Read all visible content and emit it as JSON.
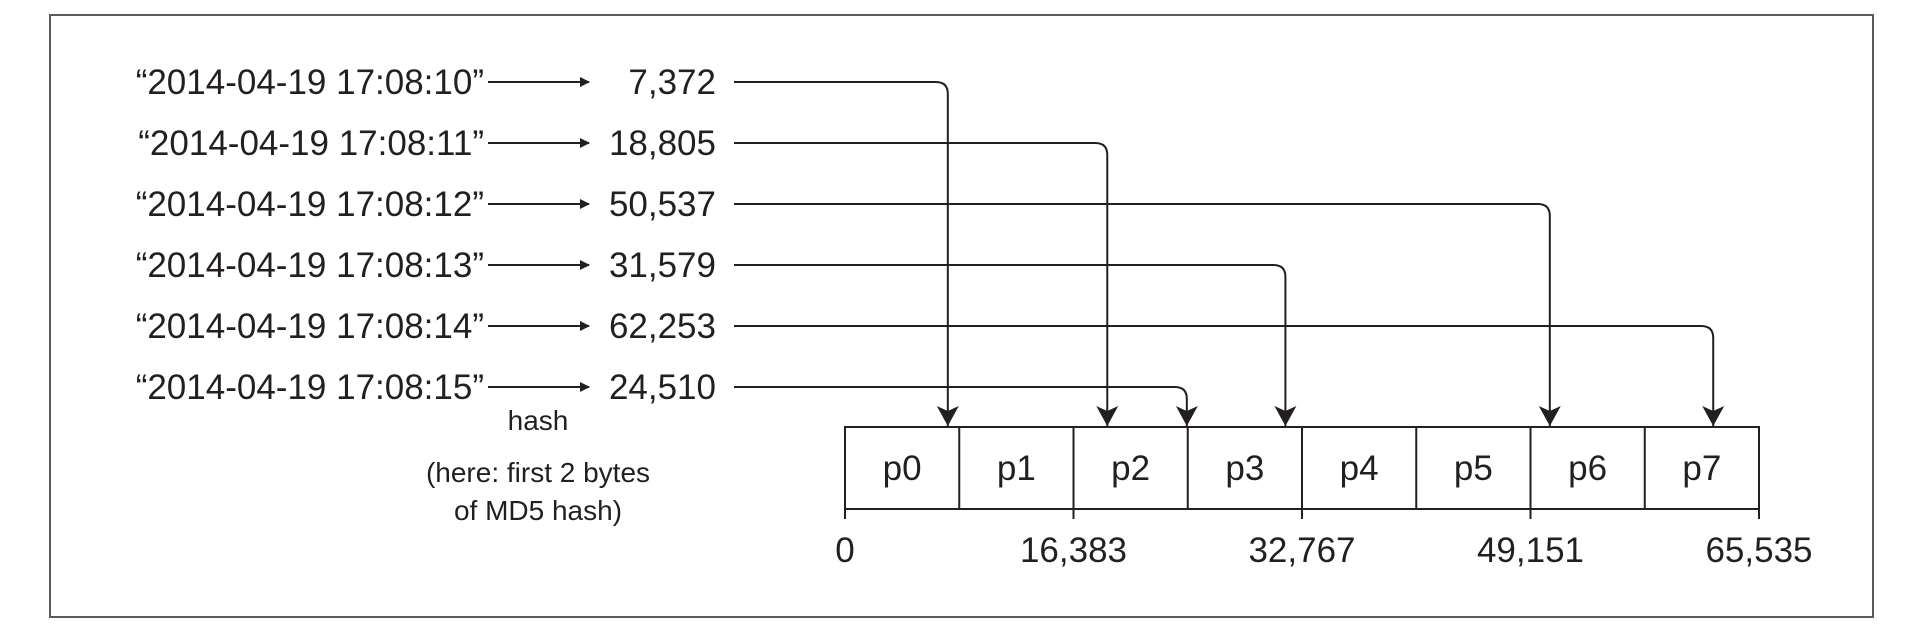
{
  "keys": [
    "“2014-04-19 17:08:10”",
    "“2014-04-19 17:08:11”",
    "“2014-04-19 17:08:12”",
    "“2014-04-19 17:08:13”",
    "“2014-04-19 17:08:14”",
    "“2014-04-19 17:08:15”"
  ],
  "hashes": [
    "7,372",
    "18,805",
    "50,537",
    "31,579",
    "62,253",
    "24,510"
  ],
  "hash_values": [
    7372,
    18805,
    50537,
    31579,
    62253,
    24510
  ],
  "partitions": [
    "p0",
    "p1",
    "p2",
    "p3",
    "p4",
    "p5",
    "p6",
    "p7"
  ],
  "scale_ticks": [
    "0",
    "16,383",
    "32,767",
    "49,151",
    "65,535"
  ],
  "caption": {
    "line1": "hash",
    "line2": "(here: first 2 bytes",
    "line3": "of MD5 hash)"
  },
  "colors": {
    "ink": "#231f20",
    "frame": "#5a5a5a",
    "background": "#ffffff"
  }
}
